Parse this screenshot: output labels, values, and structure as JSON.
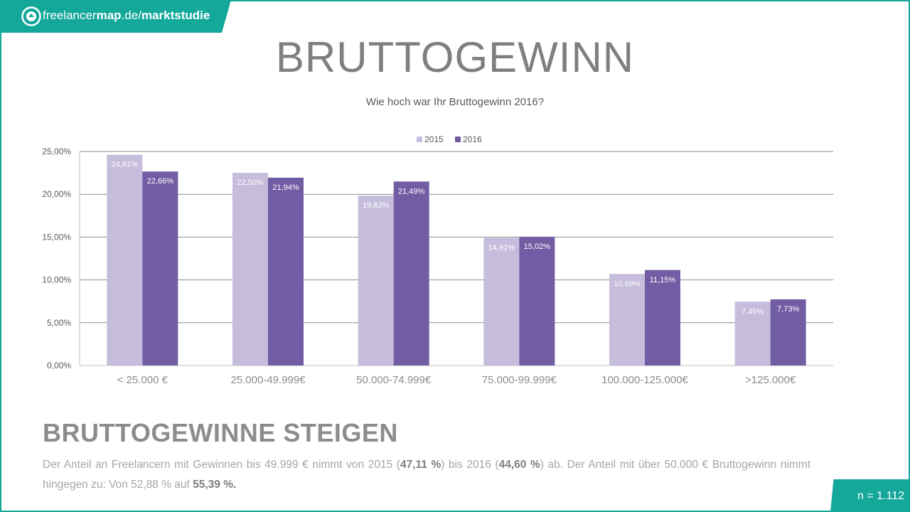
{
  "brand": {
    "name_light": "freelancer",
    "name_bold": "map",
    "domain": ".de/",
    "section": "marktstudie"
  },
  "title": "BRUTTOGEWINN",
  "subtitle": "Wie hoch war Ihr Bruttogewinn 2016?",
  "chart_data": {
    "type": "bar",
    "categories": [
      "< 25.000 €",
      "25.000-49.999€",
      "50.000-74.999€",
      "75.000-99.999€",
      "100.000-125.000€",
      ">125.000€"
    ],
    "series": [
      {
        "name": "2015",
        "color": "#c5bddb",
        "values": [
          24.61,
          22.5,
          19.83,
          14.91,
          10.69,
          7.45
        ],
        "labels": [
          "24,61%",
          "22,50%",
          "19,83%",
          "14,91%",
          "10,69%",
          "7,45%"
        ]
      },
      {
        "name": "2016",
        "color": "#725ca4",
        "values": [
          22.66,
          21.94,
          21.49,
          15.02,
          11.15,
          7.73
        ],
        "labels": [
          "22,66%",
          "21,94%",
          "21,49%",
          "15,02%",
          "11,15%",
          "7,73%"
        ]
      }
    ],
    "ylim": [
      0,
      25
    ],
    "yticks": [
      0,
      5,
      10,
      15,
      20,
      25
    ],
    "ytick_labels": [
      "0,00%",
      "5,00%",
      "10,00%",
      "15,00%",
      "20,00%",
      "25,00%"
    ],
    "legend_position": "top-center",
    "grid": true
  },
  "headline": "BRUTTOGEWINNE STEIGEN",
  "body": {
    "t1": "Der Anteil an Freelancern mit Gewinnen bis 49.999 € nimmt von 2015 (",
    "b1": "47,11 %",
    "t2": ") bis 2016 (",
    "b2": "44,60 %",
    "t3": ") ab. Der Anteil mit über 50.000 € Bruttogewinn nimmt hingegen zu: Von 52,88 % auf ",
    "b3": "55,39 %."
  },
  "sample_size": "n = 1.112"
}
